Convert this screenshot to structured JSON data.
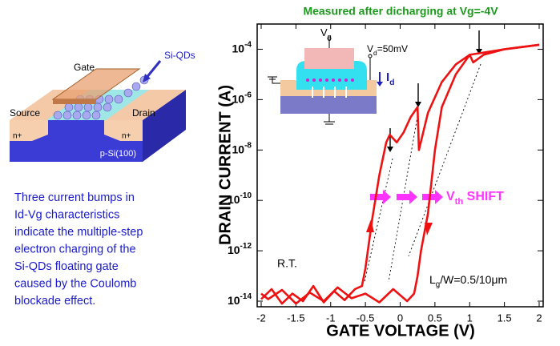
{
  "chart_data": {
    "type": "line",
    "title": "Measured after dicharging at Vg=-4V",
    "xlabel": "GATE VOLTAGE (V)",
    "ylabel": "DRAIN CURRENT (A)",
    "xlim": [
      -2,
      2
    ],
    "ylim": [
      6e-15,
      0.001
    ],
    "yscale": "log",
    "grid": false,
    "xticks": [
      -2,
      -1.5,
      -1,
      -0.5,
      0,
      0.5,
      1,
      1.5,
      2
    ],
    "yticks": [
      {
        "value": 1e-14,
        "label": "10",
        "exponent": "-14"
      },
      {
        "value": 1e-12,
        "label": "10",
        "exponent": "-12"
      },
      {
        "value": 1e-10,
        "label": "10",
        "exponent": "-10"
      },
      {
        "value": 1e-08,
        "label": "10",
        "exponent": "-8"
      },
      {
        "value": 1e-06,
        "label": "10",
        "exponent": "-6"
      },
      {
        "value": 0.0001,
        "label": "10",
        "exponent": "-4"
      }
    ],
    "series": [
      {
        "color": "#ee1111",
        "x": [
          -2,
          -1.85,
          -1.7,
          -1.55,
          -1.4,
          -1.25,
          -1.1,
          -0.95,
          -0.8,
          -0.65,
          -0.55,
          -0.5,
          -0.4,
          -0.3,
          -0.2,
          -0.15,
          -0.05,
          0.05,
          0.15,
          0.25,
          0.27,
          0.4,
          0.6,
          0.8,
          1.0,
          1.05,
          1.2,
          1.5,
          2
        ],
        "values": [
          1.2e-14,
          3e-14,
          8e-15,
          2e-14,
          1e-14,
          4e-14,
          9e-15,
          2.5e-14,
          1.1e-14,
          3e-14,
          4e-14,
          2e-13,
          2e-11,
          1e-09,
          2e-08,
          4e-08,
          2e-08,
          5e-08,
          2e-07,
          5e-07,
          1e-08,
          3e-07,
          5e-06,
          2.5e-05,
          6e-05,
          3e-05,
          6e-05,
          0.0001,
          0.00015
        ]
      },
      {
        "color": "#ee1111",
        "x": [
          2,
          1.5,
          1.0,
          0.8,
          0.6,
          0.5,
          0.4,
          0.3,
          0.25,
          0.2,
          0.1,
          -0.1,
          -0.3,
          -0.5,
          -0.7,
          -0.9,
          -1.1,
          -1.3,
          -1.5,
          -1.7,
          -1.9,
          -2
        ],
        "values": [
          0.00015,
          0.0001,
          6e-05,
          1e-05,
          5e-07,
          1e-08,
          3e-11,
          1e-12,
          1e-13,
          2e-14,
          1e-14,
          3e-14,
          9e-15,
          2e-14,
          1.3e-14,
          3.5e-14,
          1e-14,
          2.2e-14,
          8e-15,
          2.8e-14,
          1.2e-14,
          2e-14
        ]
      }
    ],
    "annotations": {
      "temperature": "R.T.",
      "size": [
        "L",
        "g",
        "/W=0.5/10μm"
      ],
      "shift": [
        "V",
        "th",
        " SHIFT"
      ]
    },
    "inset": {
      "gate_voltage": [
        "V",
        "g"
      ],
      "drain_voltage": [
        "V",
        "d",
        "=50mV"
      ],
      "drain_current": [
        "I",
        "d"
      ]
    }
  },
  "device_diagram": {
    "gate": "Gate",
    "dots": "Si-QDs",
    "source": "Source",
    "drain": "Drain",
    "source_doping": "n+",
    "drain_doping": "n+",
    "substrate": "p-Si(100)"
  },
  "description": [
    "Three current bumps in",
    "Id-Vg characteristics",
    "indicate the multiple-step",
    "electron charging of the",
    "Si-QDs floating gate",
    "caused by the Coulomb",
    "blockade effect."
  ]
}
